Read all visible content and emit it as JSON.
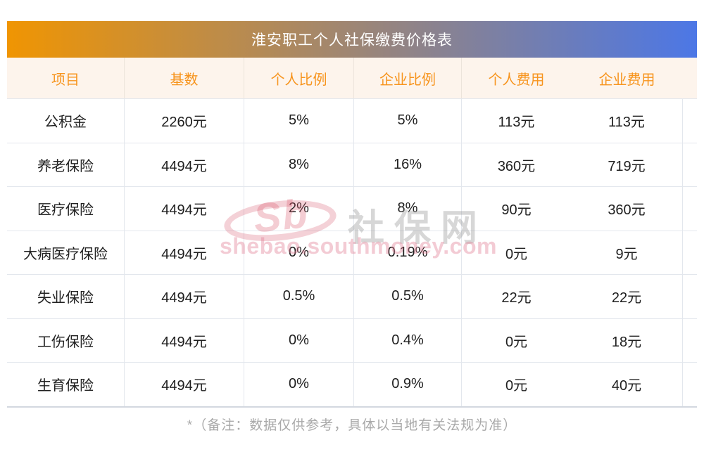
{
  "chart_data": {
    "type": "table",
    "title": "淮安职工个人社保缴费价格表",
    "columns": [
      "项目",
      "基数",
      "个人比例",
      "企业比例",
      "个人费用",
      "企业费用"
    ],
    "rows": [
      [
        "公积金",
        "2260元",
        "5%",
        "5%",
        "113元",
        "113元"
      ],
      [
        "养老保险",
        "4494元",
        "8%",
        "16%",
        "360元",
        "719元"
      ],
      [
        "医疗保险",
        "4494元",
        "2%",
        "8%",
        "90元",
        "360元"
      ],
      [
        "大病医疗保险",
        "4494元",
        "0%",
        "0.19%",
        "0元",
        "9元"
      ],
      [
        "失业保险",
        "4494元",
        "0.5%",
        "0.5%",
        "22元",
        "22元"
      ],
      [
        "工伤保险",
        "4494元",
        "0%",
        "0.4%",
        "0元",
        "18元"
      ],
      [
        "生育保险",
        "4494元",
        "0%",
        "0.9%",
        "0元",
        "40元"
      ]
    ],
    "note": "*（备注：数据仅供参考，具体以当地有关法规为准）",
    "grid": true,
    "legend_position": "none"
  },
  "watermark": {
    "logo_text": "Sb",
    "site_name": "社保网",
    "site_url": "shebao.southmoney.com"
  },
  "colors": {
    "title_gradient_left": "#f09502",
    "title_gradient_right": "#4c77e6",
    "title_text": "#ffffff",
    "header_bg": "#fdf4ec",
    "header_text": "#f7941d",
    "body_text": "#202020",
    "grid_line": "#e3e7ed",
    "note_text": "#a9a9a9",
    "watermark_pink": "#e06984",
    "watermark_gray": "#9a9a9a"
  }
}
